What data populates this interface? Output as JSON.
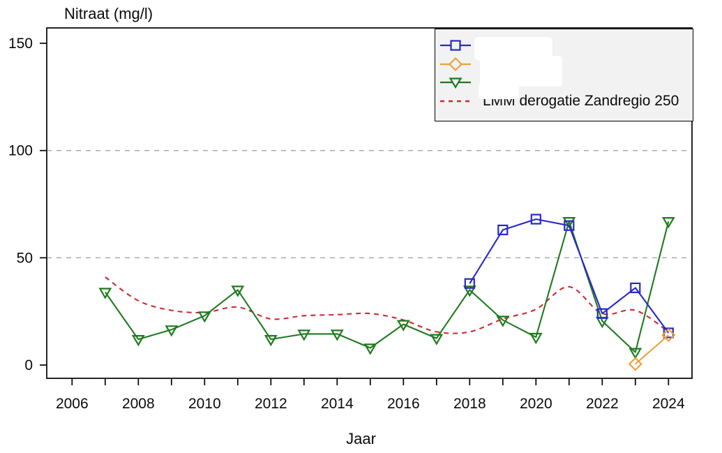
{
  "title": "Nitraat (mg/l)",
  "xlabel": "Jaar",
  "colors": {
    "blue_series": "#2828c8",
    "orange_series": "#eaa13c",
    "green_series": "#1f7a1f",
    "red_reference": "#cc2936",
    "gridline": "#a3a3a3",
    "axis": "#000000",
    "legend_background": "#f2f2f2"
  },
  "legend": {
    "entries": [
      {
        "label": "",
        "redacted": true,
        "marker": "square",
        "color": "#2828c8",
        "line": "solid"
      },
      {
        "label": "",
        "redacted": true,
        "marker": "diamond",
        "color": "#eaa13c",
        "line": "solid"
      },
      {
        "label": "",
        "redacted": true,
        "marker": "triangle-down",
        "color": "#1f7a1f",
        "line": "solid"
      },
      {
        "label": "LMM derogatie Zandregio 250",
        "redacted": false,
        "marker": "none",
        "color": "#cc2936",
        "line": "dashed"
      }
    ]
  },
  "chart_data": {
    "type": "line",
    "title": "Nitraat (mg/l)",
    "xlabel": "Jaar",
    "ylabel": "",
    "xlim": [
      2005.2,
      2024.75
    ],
    "ylim": [
      0,
      157
    ],
    "x_ticks": [
      2006,
      2007,
      2008,
      2009,
      2010,
      2011,
      2012,
      2013,
      2014,
      2015,
      2016,
      2017,
      2018,
      2019,
      2020,
      2021,
      2022,
      2023,
      2024
    ],
    "x_tick_labels": [
      "2006",
      "2008",
      "2010",
      "2012",
      "2014",
      "2016",
      "2018",
      "2020",
      "2022",
      "2024"
    ],
    "y_ticks": [
      0,
      50,
      100,
      150
    ],
    "y_tick_labels": [
      "0",
      "50",
      "100",
      "150"
    ],
    "gridlines_y": [
      50,
      100
    ],
    "grid": "dashed-horizontal",
    "legend_position": "top-right",
    "series": [
      {
        "name": "red-reference",
        "label": "LMM derogatie Zandregio 250",
        "color": "#cc2936",
        "marker": "none",
        "dashed": true,
        "smooth": true,
        "points": [
          [
            2007,
            41
          ],
          [
            2008,
            30
          ],
          [
            2009,
            25.5
          ],
          [
            2010,
            24.5
          ],
          [
            2011,
            27
          ],
          [
            2012,
            21.5
          ],
          [
            2013,
            23
          ],
          [
            2014,
            23.5
          ],
          [
            2015,
            24
          ],
          [
            2016,
            21
          ],
          [
            2017,
            15.5
          ],
          [
            2018,
            15.5
          ],
          [
            2019,
            21.5
          ],
          [
            2020,
            26
          ],
          [
            2021,
            36.5
          ],
          [
            2022,
            24
          ],
          [
            2023,
            25.5
          ],
          [
            2024,
            15.5
          ]
        ]
      },
      {
        "name": "green-triangles",
        "label": "",
        "color": "#1f7a1f",
        "marker": "triangle-down",
        "dashed": false,
        "smooth": false,
        "points": [
          [
            2007,
            34
          ],
          [
            2008,
            12
          ],
          [
            2009,
            16.5
          ],
          [
            2010,
            23
          ],
          [
            2011,
            35
          ],
          [
            2012,
            12
          ],
          [
            2013,
            14.5
          ],
          [
            2014,
            14.5
          ],
          [
            2015,
            8
          ],
          [
            2016,
            19
          ],
          [
            2017,
            12.5
          ],
          [
            2018,
            35
          ],
          [
            2019,
            21
          ],
          [
            2020,
            13
          ],
          [
            2021,
            67
          ],
          [
            2022,
            20.5
          ],
          [
            2023,
            6
          ],
          [
            2024,
            67
          ]
        ]
      },
      {
        "name": "blue-squares",
        "label": "",
        "color": "#2828c8",
        "marker": "square",
        "dashed": false,
        "smooth": false,
        "points": [
          [
            2018,
            38
          ],
          [
            2019,
            63
          ],
          [
            2020,
            68
          ],
          [
            2021,
            65
          ],
          [
            2022,
            24
          ],
          [
            2023,
            36
          ],
          [
            2024,
            15
          ]
        ]
      },
      {
        "name": "orange-diamonds",
        "label": "",
        "color": "#eaa13c",
        "marker": "diamond",
        "dashed": false,
        "smooth": false,
        "points": [
          [
            2023,
            0.5
          ],
          [
            2024,
            14
          ]
        ]
      }
    ]
  }
}
